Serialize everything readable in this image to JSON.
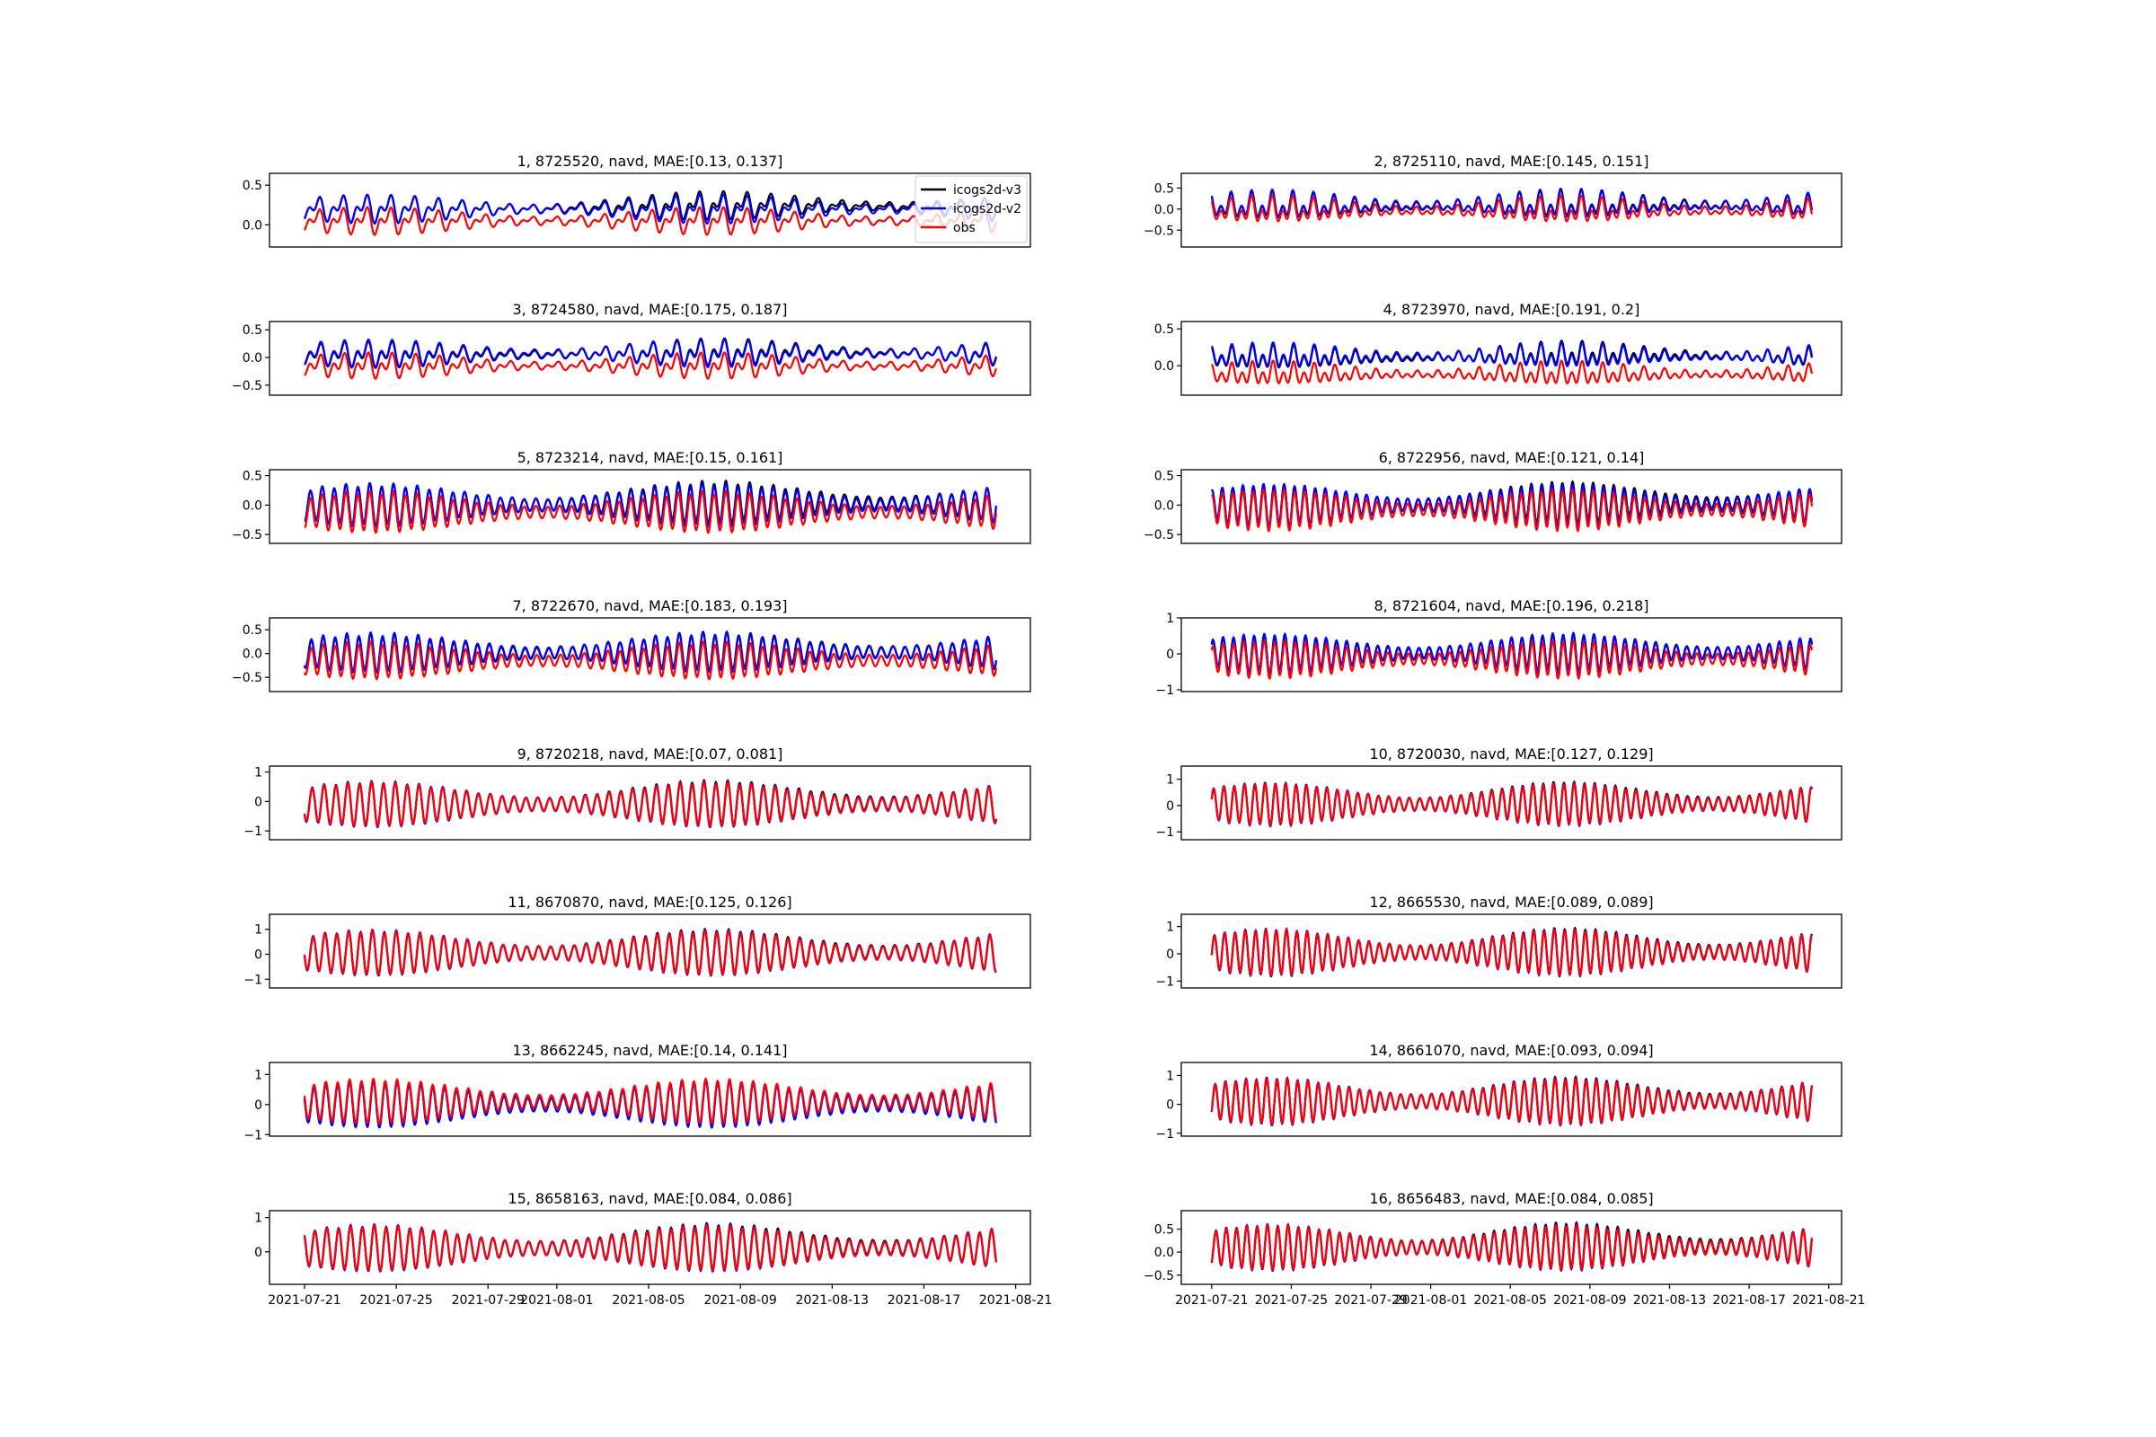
{
  "chart_data": {
    "type": "line",
    "layout": "grid",
    "rows": 8,
    "cols": 2,
    "legend": {
      "placement": "upper-right of panel 1",
      "entries": [
        {
          "name": "icogs2d-v3",
          "color": "#000000"
        },
        {
          "name": "icogs2d-v2",
          "color": "#0000ff"
        },
        {
          "name": "obs",
          "color": "#ff0000"
        }
      ]
    },
    "x_range": [
      "2021-07-21",
      "2021-08-21"
    ],
    "x_ticks": [
      "2021-07-21",
      "2021-07-25",
      "2021-07-29",
      "2021-08-01",
      "2021-08-05",
      "2021-08-09",
      "2021-08-13",
      "2021-08-17",
      "2021-08-21"
    ],
    "series_names": [
      "icogs2d-v3",
      "icogs2d-v2",
      "obs"
    ],
    "panels": [
      {
        "title": "1, 8725520, navd, MAE:[0.13, 0.137]",
        "ylim": [
          -0.28,
          0.65
        ],
        "yticks": [
          0.0,
          0.5
        ],
        "ytick_labels": [
          "0.0",
          "0.5"
        ],
        "mean_v3": 0.2,
        "mean_v2": 0.2,
        "mean_obs": 0.05,
        "amp": 0.18,
        "diurnal": 0.7
      },
      {
        "title": "2, 8725110, navd, MAE:[0.145, 0.151]",
        "ylim": [
          -0.9,
          0.85
        ],
        "yticks": [
          -0.5,
          0.0,
          0.5
        ],
        "ytick_labels": [
          "−0.5",
          "0.0",
          "0.5"
        ],
        "mean_v3": 0.05,
        "mean_v2": 0.07,
        "mean_obs": -0.05,
        "amp": 0.35,
        "diurnal": 0.6
      },
      {
        "title": "3, 8724580, navd, MAE:[0.175, 0.187]",
        "ylim": [
          -0.68,
          0.65
        ],
        "yticks": [
          -0.5,
          0.0,
          0.5
        ],
        "ytick_labels": [
          "−0.5",
          "0.0",
          "0.5"
        ],
        "mean_v3": 0.05,
        "mean_v2": 0.07,
        "mean_obs": -0.15,
        "amp": 0.25,
        "diurnal": 0.6
      },
      {
        "title": "4, 8723970, navd, MAE:[0.191, 0.2]",
        "ylim": [
          -0.4,
          0.6
        ],
        "yticks": [
          0.0,
          0.5
        ],
        "ytick_labels": [
          "0.0",
          "0.5"
        ],
        "mean_v3": 0.1,
        "mean_v2": 0.12,
        "mean_obs": -0.12,
        "amp": 0.18,
        "diurnal": 0.5
      },
      {
        "title": "5, 8723214, navd, MAE:[0.15, 0.161]",
        "ylim": [
          -0.65,
          0.6
        ],
        "yticks": [
          -0.5,
          0.0,
          0.5
        ],
        "ytick_labels": [
          "−0.5",
          "0.0",
          "0.5"
        ],
        "mean_v3": 0.0,
        "mean_v2": 0.0,
        "mean_obs": -0.12,
        "amp": 0.4,
        "diurnal": 0.1
      },
      {
        "title": "6, 8722956, navd, MAE:[0.121, 0.14]",
        "ylim": [
          -0.65,
          0.6
        ],
        "yticks": [
          -0.5,
          0.0,
          0.5
        ],
        "ytick_labels": [
          "−0.5",
          "0.0",
          "0.5"
        ],
        "mean_v3": 0.0,
        "mean_v2": 0.0,
        "mean_obs": -0.08,
        "amp": 0.4,
        "diurnal": 0.1
      },
      {
        "title": "7, 8722670, navd, MAE:[0.183, 0.193]",
        "ylim": [
          -0.8,
          0.75
        ],
        "yticks": [
          -0.5,
          0.0,
          0.5
        ],
        "ytick_labels": [
          "−0.5",
          "0.0",
          "0.5"
        ],
        "mean_v3": 0.0,
        "mean_v2": 0.02,
        "mean_obs": -0.15,
        "amp": 0.45,
        "diurnal": 0.1
      },
      {
        "title": "8, 8721604, navd, MAE:[0.196, 0.218]",
        "ylim": [
          -1.05,
          1.0
        ],
        "yticks": [
          -1,
          0,
          1
        ],
        "ytick_labels": [
          "−1",
          "0",
          "1"
        ],
        "mean_v3": 0.0,
        "mean_v2": 0.02,
        "mean_obs": -0.15,
        "amp": 0.6,
        "diurnal": 0.1
      },
      {
        "title": "9, 8720218, navd, MAE:[0.07, 0.081]",
        "ylim": [
          -1.3,
          1.2
        ],
        "yticks": [
          -1,
          0,
          1
        ],
        "ytick_labels": [
          "−1",
          "0",
          "1"
        ],
        "mean_v3": -0.1,
        "mean_v2": -0.1,
        "mean_obs": -0.1,
        "amp": 0.85,
        "diurnal": 0.05
      },
      {
        "title": "10, 8720030, navd, MAE:[0.127, 0.129]",
        "ylim": [
          -1.3,
          1.5
        ],
        "yticks": [
          -1,
          0,
          1
        ],
        "ytick_labels": [
          "−1",
          "0",
          "1"
        ],
        "mean_v3": 0.05,
        "mean_v2": 0.05,
        "mean_obs": 0.05,
        "amp": 0.9,
        "diurnal": 0.05
      },
      {
        "title": "11, 8670870, navd, MAE:[0.125, 0.126]",
        "ylim": [
          -1.35,
          1.6
        ],
        "yticks": [
          -1,
          0,
          1
        ],
        "ytick_labels": [
          "−1",
          "0",
          "1"
        ],
        "mean_v3": 0.05,
        "mean_v2": 0.05,
        "mean_obs": 0.05,
        "amp": 1.0,
        "diurnal": 0.05
      },
      {
        "title": "12, 8665530, navd, MAE:[0.089, 0.089]",
        "ylim": [
          -1.25,
          1.45
        ],
        "yticks": [
          -1,
          0,
          1
        ],
        "ytick_labels": [
          "−1",
          "0",
          "1"
        ],
        "mean_v3": 0.05,
        "mean_v2": 0.05,
        "mean_obs": 0.05,
        "amp": 0.95,
        "diurnal": 0.05
      },
      {
        "title": "13, 8662245, navd, MAE:[0.14, 0.141]",
        "ylim": [
          -1.05,
          1.4
        ],
        "yticks": [
          -1,
          0,
          1
        ],
        "ytick_labels": [
          "−1",
          "0",
          "1"
        ],
        "mean_v3": 0.0,
        "mean_v2": 0.0,
        "mean_obs": 0.1,
        "amp": 0.85,
        "diurnal": 0.05
      },
      {
        "title": "14, 8661070, navd, MAE:[0.093, 0.094]",
        "ylim": [
          -1.1,
          1.45
        ],
        "yticks": [
          -1,
          0,
          1
        ],
        "ytick_labels": [
          "−1",
          "0",
          "1"
        ],
        "mean_v3": 0.1,
        "mean_v2": 0.1,
        "mean_obs": 0.1,
        "amp": 0.9,
        "diurnal": 0.05
      },
      {
        "title": "15, 8658163, navd, MAE:[0.084, 0.086]",
        "ylim": [
          -0.95,
          1.2
        ],
        "yticks": [
          0,
          1
        ],
        "ytick_labels": [
          "0",
          "1"
        ],
        "mean_v3": 0.1,
        "mean_v2": 0.1,
        "mean_obs": 0.1,
        "amp": 0.75,
        "diurnal": 0.05
      },
      {
        "title": "16, 8656483, navd, MAE:[0.084, 0.085]",
        "ylim": [
          -0.7,
          0.9
        ],
        "yticks": [
          -0.5,
          0.0,
          0.5
        ],
        "ytick_labels": [
          "−0.5",
          "0.0",
          "0.5"
        ],
        "mean_v3": 0.1,
        "mean_v2": 0.1,
        "mean_obs": 0.1,
        "amp": 0.55,
        "diurnal": 0.05
      }
    ]
  }
}
